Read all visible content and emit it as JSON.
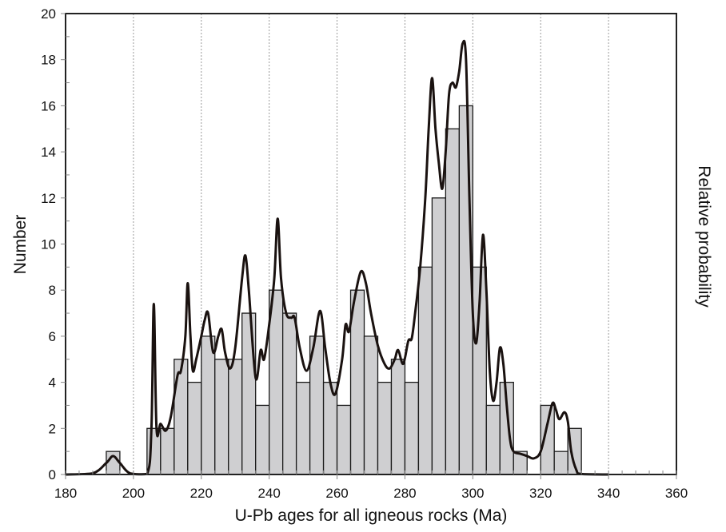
{
  "chart_data": {
    "type": "bar",
    "title": "",
    "xlabel": "U-Pb ages for all igneous rocks (Ma)",
    "ylabel": "Number",
    "y2label": "Relative probability",
    "xlim": [
      180,
      360
    ],
    "ylim": [
      0,
      20
    ],
    "xticks": [
      180,
      200,
      220,
      240,
      260,
      280,
      300,
      320,
      340,
      360
    ],
    "yticks": [
      0,
      2,
      4,
      6,
      8,
      10,
      12,
      14,
      16,
      18,
      20
    ],
    "grid": "vertical dotted at x ticks",
    "bin_width": 4,
    "bins": [
      {
        "start": 192,
        "count": 1
      },
      {
        "start": 204,
        "count": 2
      },
      {
        "start": 208,
        "count": 2
      },
      {
        "start": 212,
        "count": 5
      },
      {
        "start": 216,
        "count": 4
      },
      {
        "start": 220,
        "count": 6
      },
      {
        "start": 224,
        "count": 5
      },
      {
        "start": 228,
        "count": 5
      },
      {
        "start": 232,
        "count": 7
      },
      {
        "start": 236,
        "count": 3
      },
      {
        "start": 240,
        "count": 8
      },
      {
        "start": 244,
        "count": 7
      },
      {
        "start": 248,
        "count": 4
      },
      {
        "start": 252,
        "count": 6
      },
      {
        "start": 256,
        "count": 4
      },
      {
        "start": 260,
        "count": 3
      },
      {
        "start": 264,
        "count": 8
      },
      {
        "start": 268,
        "count": 6
      },
      {
        "start": 272,
        "count": 4
      },
      {
        "start": 276,
        "count": 5
      },
      {
        "start": 280,
        "count": 4
      },
      {
        "start": 284,
        "count": 9
      },
      {
        "start": 288,
        "count": 12
      },
      {
        "start": 292,
        "count": 15
      },
      {
        "start": 296,
        "count": 16
      },
      {
        "start": 300,
        "count": 9
      },
      {
        "start": 304,
        "count": 3
      },
      {
        "start": 308,
        "count": 4
      },
      {
        "start": 312,
        "count": 1
      },
      {
        "start": 320,
        "count": 3
      },
      {
        "start": 324,
        "count": 1
      },
      {
        "start": 328,
        "count": 2
      }
    ],
    "probability_curve": [
      [
        180,
        0
      ],
      [
        188,
        0.05
      ],
      [
        192,
        0.5
      ],
      [
        194,
        0.8
      ],
      [
        196,
        0.5
      ],
      [
        199,
        0.05
      ],
      [
        204,
        0.02
      ],
      [
        205.3,
        2
      ],
      [
        206,
        7.4
      ],
      [
        206.8,
        2
      ],
      [
        208,
        2.2
      ],
      [
        209.5,
        1.9
      ],
      [
        211,
        2.5
      ],
      [
        213,
        4.3
      ],
      [
        214,
        4.5
      ],
      [
        215.3,
        6
      ],
      [
        216,
        8.3
      ],
      [
        216.8,
        6
      ],
      [
        217.5,
        4.5
      ],
      [
        218.5,
        5
      ],
      [
        220,
        6
      ],
      [
        221,
        6.7
      ],
      [
        222,
        7
      ],
      [
        223.5,
        5.3
      ],
      [
        225,
        6
      ],
      [
        226,
        6.3
      ],
      [
        227,
        5.3
      ],
      [
        228.5,
        4.6
      ],
      [
        230,
        5.5
      ],
      [
        232,
        8.5
      ],
      [
        233,
        9.5
      ],
      [
        234,
        8
      ],
      [
        236,
        4.2
      ],
      [
        237.5,
        5.4
      ],
      [
        238.5,
        5
      ],
      [
        240,
        6.5
      ],
      [
        241.5,
        8.5
      ],
      [
        242.5,
        11.1
      ],
      [
        243.5,
        8.5
      ],
      [
        245,
        7
      ],
      [
        246.5,
        6.8
      ],
      [
        247.5,
        6.8
      ],
      [
        249,
        5.5
      ],
      [
        251,
        4.5
      ],
      [
        253,
        5.5
      ],
      [
        255,
        7.1
      ],
      [
        256.5,
        5.5
      ],
      [
        258,
        4
      ],
      [
        259.5,
        3.5
      ],
      [
        261.5,
        5
      ],
      [
        262.5,
        6.5
      ],
      [
        263.5,
        6.2
      ],
      [
        265,
        7.5
      ],
      [
        267,
        8.8
      ],
      [
        268.5,
        8.3
      ],
      [
        270,
        7
      ],
      [
        272,
        5.6
      ],
      [
        274,
        4.8
      ],
      [
        275.5,
        4.6
      ],
      [
        277,
        5
      ],
      [
        278,
        5.4
      ],
      [
        279.5,
        4.8
      ],
      [
        281,
        5.8
      ],
      [
        282,
        5.9
      ],
      [
        283,
        7
      ],
      [
        284.5,
        9
      ],
      [
        286,
        12
      ],
      [
        287,
        15
      ],
      [
        288,
        17.2
      ],
      [
        289,
        15
      ],
      [
        290,
        13.5
      ],
      [
        291,
        12.4
      ],
      [
        292,
        14
      ],
      [
        293,
        16.5
      ],
      [
        294,
        17
      ],
      [
        295,
        16.8
      ],
      [
        296,
        17.5
      ],
      [
        297,
        18.7
      ],
      [
        298,
        18
      ],
      [
        299,
        12
      ],
      [
        300,
        7
      ],
      [
        301,
        5.7
      ],
      [
        302,
        7.5
      ],
      [
        303,
        10.4
      ],
      [
        304,
        8
      ],
      [
        305,
        4.5
      ],
      [
        306,
        3.2
      ],
      [
        307,
        4
      ],
      [
        308,
        5.5
      ],
      [
        309,
        4.8
      ],
      [
        310,
        3
      ],
      [
        311,
        1.5
      ],
      [
        312,
        1
      ],
      [
        314,
        0.9
      ],
      [
        316,
        0.8
      ],
      [
        318,
        0.7
      ],
      [
        320,
        1
      ],
      [
        322,
        2.2
      ],
      [
        323.5,
        3.1
      ],
      [
        324.5,
        2.8
      ],
      [
        325.5,
        2.4
      ],
      [
        327,
        2.7
      ],
      [
        328,
        2.3
      ],
      [
        329,
        1
      ],
      [
        330.5,
        0.2
      ],
      [
        332,
        0.02
      ],
      [
        340,
        0
      ]
    ],
    "colors": {
      "bar_fill": "#cfcfd1",
      "bar_stroke": "#1a1a1a",
      "curve": "#1a1210",
      "grid": "#9a9a9a"
    }
  }
}
